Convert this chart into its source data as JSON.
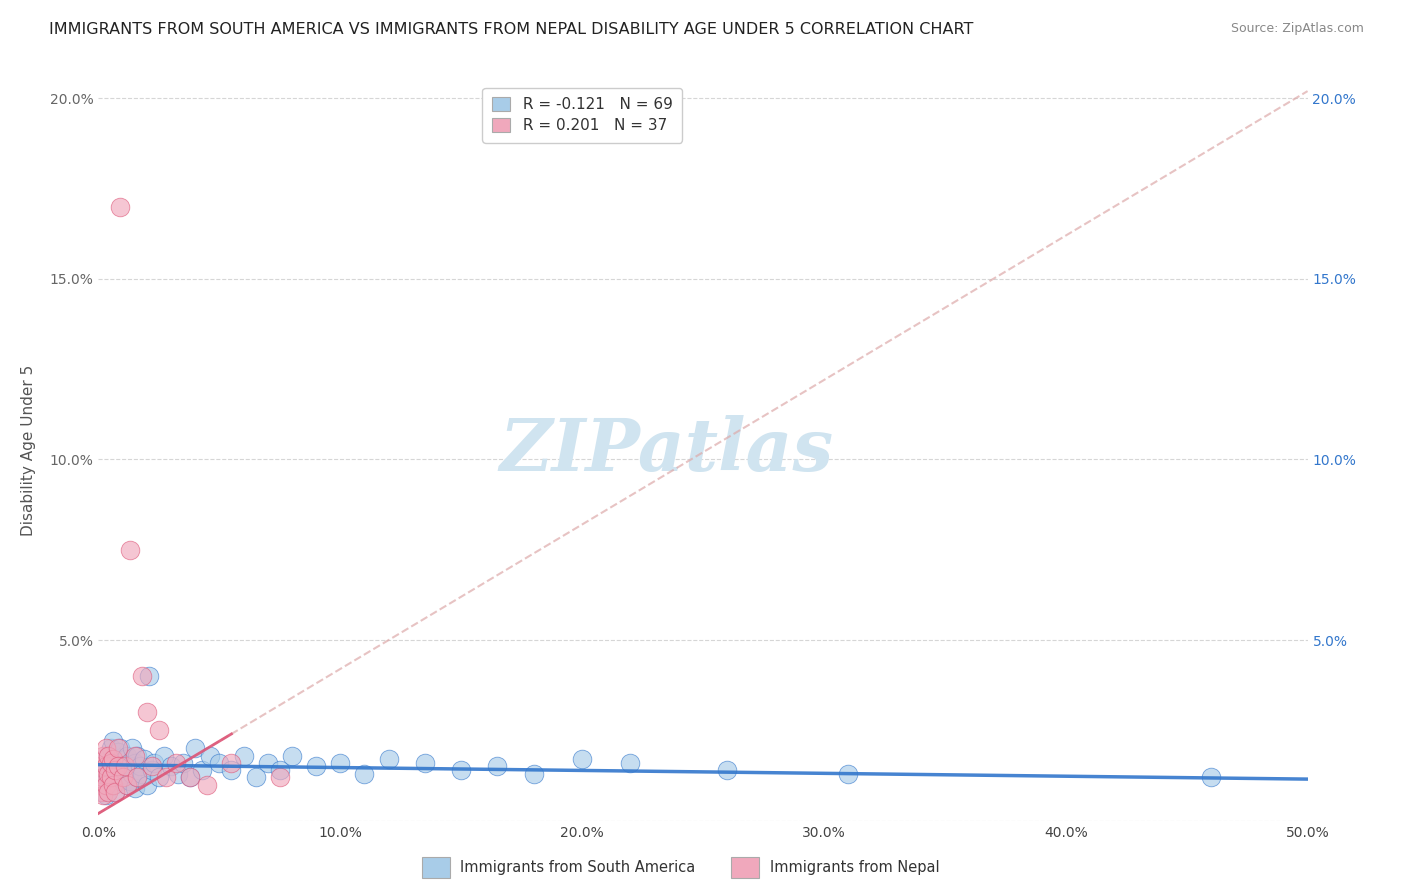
{
  "title": "IMMIGRANTS FROM SOUTH AMERICA VS IMMIGRANTS FROM NEPAL DISABILITY AGE UNDER 5 CORRELATION CHART",
  "source": "Source: ZipAtlas.com",
  "ylabel": "Disability Age Under 5",
  "xlim": [
    0.0,
    0.5
  ],
  "ylim": [
    0.0,
    0.205
  ],
  "xticks": [
    0.0,
    0.1,
    0.2,
    0.3,
    0.4,
    0.5
  ],
  "xtick_labels": [
    "0.0%",
    "10.0%",
    "20.0%",
    "30.0%",
    "40.0%",
    "50.0%"
  ],
  "yticks": [
    0.0,
    0.05,
    0.1,
    0.15,
    0.2
  ],
  "ytick_labels_left": [
    "",
    "5.0%",
    "10.0%",
    "15.0%",
    "20.0%"
  ],
  "ytick_labels_right": [
    "",
    "5.0%",
    "10.0%",
    "15.0%",
    "20.0%"
  ],
  "legend_r1": "R = -0.121",
  "legend_n1": "N = 69",
  "legend_r2": "R = 0.201",
  "legend_n2": "N = 37",
  "color_blue": "#a8cce8",
  "color_pink": "#f0a8bc",
  "color_blue_line": "#3377cc",
  "color_pink_line": "#dd5577",
  "color_pink_diag": "#ddaaaa",
  "scatter_alpha": 0.65,
  "scatter_size": 180,
  "background_color": "#ffffff",
  "grid_color": "#cccccc",
  "title_fontsize": 11.5,
  "source_fontsize": 9,
  "tick_fontsize": 10,
  "ylabel_fontsize": 11,
  "legend_fontsize": 11,
  "watermark_text": "ZIPatlas",
  "watermark_color": "#d0e4f0",
  "blue_scatter_x": [
    0.001,
    0.002,
    0.002,
    0.003,
    0.003,
    0.003,
    0.004,
    0.004,
    0.005,
    0.005,
    0.006,
    0.006,
    0.007,
    0.007,
    0.007,
    0.008,
    0.008,
    0.009,
    0.009,
    0.01,
    0.01,
    0.011,
    0.011,
    0.012,
    0.012,
    0.013,
    0.013,
    0.014,
    0.014,
    0.015,
    0.015,
    0.016,
    0.016,
    0.017,
    0.018,
    0.019,
    0.02,
    0.021,
    0.022,
    0.023,
    0.025,
    0.027,
    0.03,
    0.033,
    0.035,
    0.038,
    0.04,
    0.043,
    0.046,
    0.05,
    0.055,
    0.06,
    0.065,
    0.07,
    0.075,
    0.08,
    0.09,
    0.1,
    0.11,
    0.12,
    0.135,
    0.15,
    0.165,
    0.18,
    0.2,
    0.22,
    0.26,
    0.31,
    0.46
  ],
  "blue_scatter_y": [
    0.01,
    0.012,
    0.008,
    0.015,
    0.01,
    0.007,
    0.018,
    0.012,
    0.02,
    0.015,
    0.01,
    0.022,
    0.008,
    0.016,
    0.012,
    0.019,
    0.014,
    0.011,
    0.02,
    0.015,
    0.012,
    0.017,
    0.013,
    0.01,
    0.018,
    0.015,
    0.011,
    0.02,
    0.013,
    0.009,
    0.016,
    0.018,
    0.012,
    0.015,
    0.013,
    0.017,
    0.01,
    0.04,
    0.014,
    0.016,
    0.012,
    0.018,
    0.015,
    0.013,
    0.016,
    0.012,
    0.02,
    0.014,
    0.018,
    0.016,
    0.014,
    0.018,
    0.012,
    0.016,
    0.014,
    0.018,
    0.015,
    0.016,
    0.013,
    0.017,
    0.016,
    0.014,
    0.015,
    0.013,
    0.017,
    0.016,
    0.014,
    0.013,
    0.012
  ],
  "pink_scatter_x": [
    0.001,
    0.001,
    0.001,
    0.002,
    0.002,
    0.002,
    0.003,
    0.003,
    0.003,
    0.004,
    0.004,
    0.004,
    0.005,
    0.005,
    0.006,
    0.006,
    0.007,
    0.007,
    0.008,
    0.008,
    0.009,
    0.01,
    0.011,
    0.012,
    0.013,
    0.015,
    0.016,
    0.018,
    0.02,
    0.022,
    0.025,
    0.028,
    0.032,
    0.038,
    0.045,
    0.055,
    0.075
  ],
  "pink_scatter_y": [
    0.01,
    0.015,
    0.008,
    0.012,
    0.018,
    0.007,
    0.015,
    0.01,
    0.02,
    0.008,
    0.013,
    0.018,
    0.012,
    0.016,
    0.01,
    0.017,
    0.014,
    0.008,
    0.02,
    0.015,
    0.17,
    0.012,
    0.015,
    0.01,
    0.075,
    0.018,
    0.012,
    0.04,
    0.03,
    0.015,
    0.025,
    0.012,
    0.016,
    0.012,
    0.01,
    0.016,
    0.012
  ],
  "blue_trend_slope": -0.008,
  "blue_trend_intercept": 0.0155,
  "pink_trend_slope": 0.4,
  "pink_trend_intercept": 0.002
}
